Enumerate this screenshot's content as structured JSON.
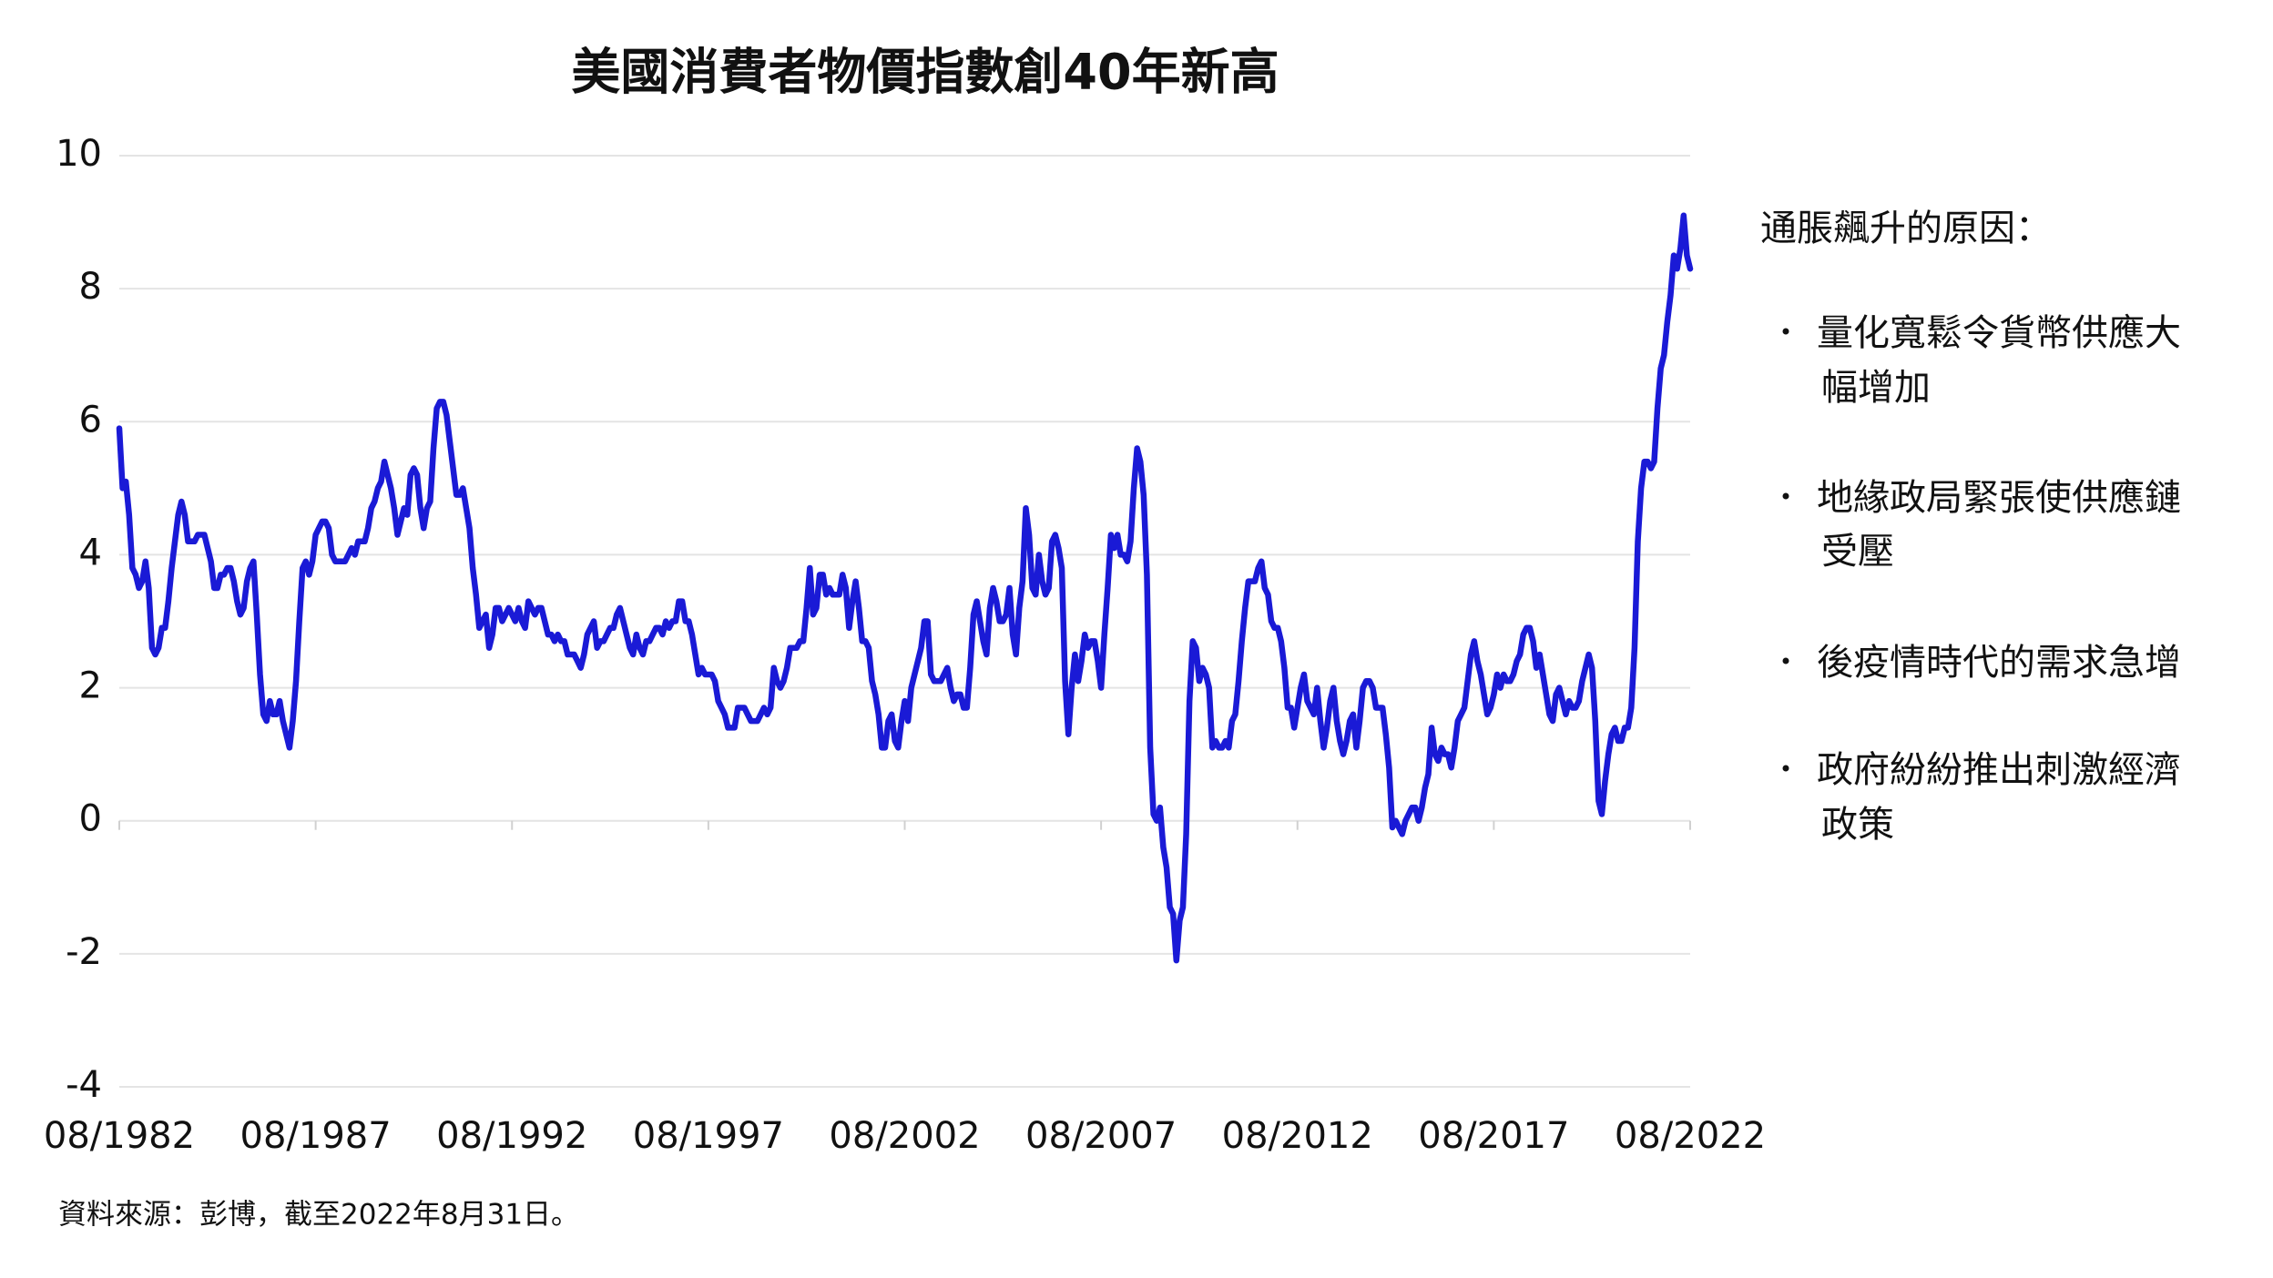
{
  "chart_data": {
    "type": "line",
    "title": "美國消費者物價指數創40年新高",
    "source": "資料來源：彭博，截至2022年8月31日。",
    "color": "#1a1ad6",
    "grid": true,
    "ylim": [
      -4,
      10
    ],
    "yticks": [
      -4,
      -2,
      0,
      2,
      4,
      6,
      8,
      10
    ],
    "categories": [
      "08/1982",
      null,
      null,
      null,
      null,
      null,
      null,
      null,
      null,
      null,
      null,
      null,
      null,
      null,
      null,
      null,
      null,
      null,
      null,
      null,
      null,
      null,
      null,
      null,
      null,
      null,
      null,
      null,
      null,
      null,
      null,
      null,
      null,
      null,
      null,
      null,
      null,
      null,
      null,
      null,
      null,
      null,
      null,
      null,
      null,
      null,
      null,
      null,
      null,
      null,
      null,
      null,
      null,
      null,
      null,
      null,
      null,
      null,
      null,
      null,
      "08/1987",
      null,
      null,
      null,
      null,
      null,
      null,
      null,
      null,
      null,
      null,
      null,
      null,
      null,
      null,
      null,
      null,
      null,
      null,
      null,
      null,
      null,
      null,
      null,
      null,
      null,
      null,
      null,
      null,
      null,
      null,
      null,
      null,
      null,
      null,
      null,
      null,
      null,
      null,
      null,
      null,
      null,
      null,
      null,
      null,
      null,
      null,
      null,
      null,
      null,
      null,
      null,
      null,
      null,
      null,
      null,
      null,
      null,
      null,
      null,
      "08/1992",
      null,
      null,
      null,
      null,
      null,
      null,
      null,
      null,
      null,
      null,
      null,
      null,
      null,
      null,
      null,
      null,
      null,
      null,
      null,
      null,
      null,
      null,
      null,
      null,
      null,
      null,
      null,
      null,
      null,
      null,
      null,
      null,
      null,
      null,
      null,
      null,
      null,
      null,
      null,
      null,
      null,
      null,
      null,
      null,
      null,
      null,
      null,
      null,
      null,
      null,
      null,
      null,
      null,
      null,
      null,
      null,
      null,
      null,
      null,
      "08/1997",
      null,
      null,
      null,
      null,
      null,
      null,
      null,
      null,
      null,
      null,
      null,
      null,
      null,
      null,
      null,
      null,
      null,
      null,
      null,
      null,
      null,
      null,
      null,
      null,
      null,
      null,
      null,
      null,
      null,
      null,
      null,
      null,
      null,
      null,
      null,
      null,
      null,
      null,
      null,
      null,
      null,
      null,
      null,
      null,
      null,
      null,
      null,
      null,
      null,
      null,
      null,
      null,
      null,
      null,
      null,
      null,
      null,
      null,
      null,
      "08/2002",
      null,
      null,
      null,
      null,
      null,
      null,
      null,
      null,
      null,
      null,
      null,
      null,
      null,
      null,
      null,
      null,
      null,
      null,
      null,
      null,
      null,
      null,
      null,
      null,
      null,
      null,
      null,
      null,
      null,
      null,
      null,
      null,
      null,
      null,
      null,
      null,
      null,
      null,
      null,
      null,
      null,
      null,
      null,
      null,
      null,
      null,
      null,
      null,
      null,
      null,
      null,
      null,
      null,
      null,
      null,
      null,
      null,
      null,
      null,
      "08/2007",
      null,
      null,
      null,
      null,
      null,
      null,
      null,
      null,
      null,
      null,
      null,
      null,
      null,
      null,
      null,
      null,
      null,
      null,
      null,
      null,
      null,
      null,
      null,
      null,
      null,
      null,
      null,
      null,
      null,
      null,
      null,
      null,
      null,
      null,
      null,
      null,
      null,
      null,
      null,
      null,
      null,
      null,
      null,
      null,
      null,
      null,
      null,
      null,
      null,
      null,
      null,
      null,
      null,
      null,
      null,
      null,
      null,
      null,
      null,
      "08/2012",
      null,
      null,
      null,
      null,
      null,
      null,
      null,
      null,
      null,
      null,
      null,
      null,
      null,
      null,
      null,
      null,
      null,
      null,
      null,
      null,
      null,
      null,
      null,
      null,
      null,
      null,
      null,
      null,
      null,
      null,
      null,
      null,
      null,
      null,
      null,
      null,
      null,
      null,
      null,
      null,
      null,
      null,
      null,
      null,
      null,
      null,
      null,
      null,
      null,
      null,
      null,
      null,
      null,
      null,
      null,
      null,
      null,
      null,
      null,
      "08/2017",
      null,
      null,
      null,
      null,
      null,
      null,
      null,
      null,
      null,
      null,
      null,
      null,
      null,
      null,
      null,
      null,
      null,
      null,
      null,
      null,
      null,
      null,
      null,
      null,
      null,
      null,
      null,
      null,
      null,
      null,
      null,
      null,
      null,
      null,
      null,
      null,
      null,
      null,
      null,
      null,
      null,
      null,
      null,
      null,
      null,
      null,
      null,
      null,
      null,
      null,
      null,
      null,
      null,
      null,
      null,
      null,
      null,
      null,
      null,
      "08/2022"
    ],
    "values": [
      5.9,
      5.0,
      5.1,
      4.6,
      3.8,
      3.7,
      3.5,
      3.6,
      3.9,
      3.5,
      2.6,
      2.5,
      2.6,
      2.9,
      2.9,
      3.3,
      3.8,
      4.2,
      4.6,
      4.8,
      4.6,
      4.2,
      4.2,
      4.2,
      4.3,
      4.3,
      4.3,
      4.1,
      3.9,
      3.5,
      3.5,
      3.7,
      3.7,
      3.8,
      3.8,
      3.6,
      3.3,
      3.1,
      3.2,
      3.6,
      3.8,
      3.9,
      3.1,
      2.2,
      1.6,
      1.5,
      1.8,
      1.6,
      1.6,
      1.8,
      1.5,
      1.3,
      1.1,
      1.5,
      2.1,
      3.0,
      3.8,
      3.9,
      3.7,
      3.9,
      4.3,
      4.4,
      4.5,
      4.5,
      4.4,
      4.0,
      3.9,
      3.9,
      3.9,
      3.9,
      4.0,
      4.1,
      4.0,
      4.2,
      4.2,
      4.2,
      4.4,
      4.7,
      4.8,
      5.0,
      5.1,
      5.4,
      5.2,
      5.0,
      4.7,
      4.3,
      4.5,
      4.7,
      4.6,
      5.2,
      5.3,
      5.2,
      4.7,
      4.4,
      4.7,
      4.8,
      5.6,
      6.2,
      6.3,
      6.3,
      6.1,
      5.7,
      5.3,
      4.9,
      4.9,
      5.0,
      4.7,
      4.4,
      3.8,
      3.4,
      2.9,
      3.0,
      3.1,
      2.6,
      2.8,
      3.2,
      3.2,
      3.0,
      3.1,
      3.2,
      3.1,
      3.0,
      3.2,
      3.0,
      2.9,
      3.3,
      3.2,
      3.1,
      3.2,
      3.2,
      3.0,
      2.8,
      2.8,
      2.7,
      2.8,
      2.7,
      2.7,
      2.5,
      2.5,
      2.5,
      2.4,
      2.3,
      2.5,
      2.8,
      2.9,
      3.0,
      2.6,
      2.7,
      2.7,
      2.8,
      2.9,
      2.9,
      3.1,
      3.2,
      3.0,
      2.8,
      2.6,
      2.5,
      2.8,
      2.6,
      2.5,
      2.7,
      2.7,
      2.8,
      2.9,
      2.9,
      2.8,
      3.0,
      2.9,
      3.0,
      3.0,
      3.3,
      3.3,
      3.0,
      3.0,
      2.8,
      2.5,
      2.2,
      2.3,
      2.2,
      2.2,
      2.2,
      2.1,
      1.8,
      1.7,
      1.6,
      1.4,
      1.4,
      1.4,
      1.7,
      1.7,
      1.7,
      1.6,
      1.5,
      1.5,
      1.5,
      1.6,
      1.7,
      1.6,
      1.7,
      2.3,
      2.1,
      2.0,
      2.1,
      2.3,
      2.6,
      2.6,
      2.6,
      2.7,
      2.7,
      3.2,
      3.8,
      3.1,
      3.2,
      3.7,
      3.7,
      3.4,
      3.5,
      3.4,
      3.4,
      3.4,
      3.7,
      3.5,
      2.9,
      3.3,
      3.6,
      3.2,
      2.7,
      2.7,
      2.6,
      2.1,
      1.9,
      1.6,
      1.1,
      1.1,
      1.5,
      1.6,
      1.2,
      1.1,
      1.5,
      1.8,
      1.5,
      2.0,
      2.2,
      2.4,
      2.6,
      3.0,
      3.0,
      2.2,
      2.1,
      2.1,
      2.1,
      2.2,
      2.3,
      2.0,
      1.8,
      1.9,
      1.9,
      1.7,
      1.7,
      2.3,
      3.1,
      3.3,
      3.0,
      2.7,
      2.5,
      3.2,
      3.5,
      3.3,
      3.0,
      3.0,
      3.1,
      3.5,
      2.8,
      2.5,
      3.2,
      3.6,
      4.7,
      4.3,
      3.5,
      3.4,
      4.0,
      3.6,
      3.4,
      3.5,
      4.2,
      4.3,
      4.1,
      3.8,
      2.1,
      1.3,
      2.0,
      2.5,
      2.1,
      2.4,
      2.8,
      2.6,
      2.7,
      2.7,
      2.4,
      2.0,
      2.8,
      3.5,
      4.3,
      4.1,
      4.3,
      4.0,
      4.0,
      3.9,
      4.2,
      5.0,
      5.6,
      5.4,
      4.9,
      3.7,
      1.1,
      0.1,
      0.0,
      0.2,
      -0.4,
      -0.7,
      -1.3,
      -1.4,
      -2.1,
      -1.5,
      -1.3,
      -0.2,
      1.8,
      2.7,
      2.6,
      2.1,
      2.3,
      2.2,
      2.0,
      1.1,
      1.2,
      1.1,
      1.1,
      1.2,
      1.1,
      1.5,
      1.6,
      2.1,
      2.7,
      3.2,
      3.6,
      3.6,
      3.6,
      3.8,
      3.9,
      3.5,
      3.4,
      3.0,
      2.9,
      2.9,
      2.7,
      2.3,
      1.7,
      1.7,
      1.4,
      1.7,
      2.0,
      2.2,
      1.8,
      1.7,
      1.6,
      2.0,
      1.5,
      1.1,
      1.4,
      1.8,
      2.0,
      1.5,
      1.2,
      1.0,
      1.2,
      1.5,
      1.6,
      1.1,
      1.5,
      2.0,
      2.1,
      2.1,
      2.0,
      1.7,
      1.7,
      1.7,
      1.3,
      0.8,
      -0.1,
      0.0,
      -0.1,
      -0.2,
      0.0,
      0.1,
      0.2,
      0.2,
      0.0,
      0.2,
      0.5,
      0.7,
      1.4,
      1.0,
      0.9,
      1.1,
      1.0,
      1.0,
      0.8,
      1.1,
      1.5,
      1.6,
      1.7,
      2.1,
      2.5,
      2.7,
      2.4,
      2.2,
      1.9,
      1.6,
      1.7,
      1.9,
      2.2,
      2.0,
      2.2,
      2.1,
      2.1,
      2.2,
      2.4,
      2.5,
      2.8,
      2.9,
      2.9,
      2.7,
      2.3,
      2.5,
      2.2,
      1.9,
      1.6,
      1.5,
      1.9,
      2.0,
      1.8,
      1.6,
      1.8,
      1.7,
      1.7,
      1.8,
      2.1,
      2.3,
      2.5,
      2.3,
      1.5,
      0.3,
      0.1,
      0.6,
      1.0,
      1.3,
      1.4,
      1.2,
      1.2,
      1.4,
      1.4,
      1.7,
      2.6,
      4.2,
      5.0,
      5.4,
      5.4,
      5.3,
      5.4,
      6.2,
      6.8,
      7.0,
      7.5,
      7.9,
      8.5,
      8.3,
      8.6,
      9.1,
      8.5,
      8.3
    ]
  },
  "sidebar": {
    "heading": "通脹飆升的原因：",
    "items": [
      [
        "量化寬鬆令貨幣供應大",
        "幅增加"
      ],
      [
        "地緣政局緊張使供應鏈",
        "受壓"
      ],
      [
        "後疫情時代的需求急增"
      ],
      [
        "政府紛紛推出刺激經濟",
        "政策"
      ]
    ]
  }
}
